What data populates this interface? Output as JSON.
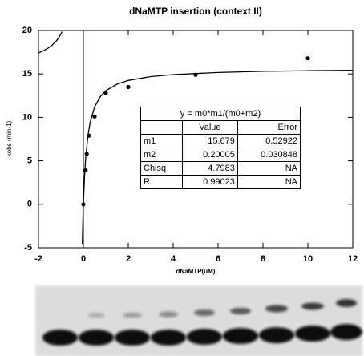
{
  "chart_data": {
    "type": "scatter",
    "title": "dNaMTP  insertion (context II)",
    "x_label": "dNaMTP(uM)",
    "y_label": "kobs (min-1)",
    "x": [
      0,
      0.1,
      0.15,
      0.25,
      0.5,
      1,
      2,
      5,
      10
    ],
    "values": [
      0,
      3.9,
      5.8,
      7.9,
      10.1,
      12.8,
      13.5,
      14.9,
      16.8
    ],
    "color": "#000000",
    "fit": {
      "x": [
        -2,
        -1.8,
        -1.6,
        -1.4,
        -1.2,
        -1.1,
        -1,
        -0.95,
        -0.5,
        -0.045,
        -0.02,
        0,
        0.05,
        0.1,
        0.2,
        0.3,
        0.5,
        0.75,
        1,
        1.5,
        2,
        3,
        4,
        6,
        8,
        10,
        12
      ],
      "values": [
        17.42,
        17.64,
        17.92,
        18.29,
        18.81,
        19.16,
        19.6,
        19.86,
        null,
        -4.55,
        -1.74,
        0,
        3.14,
        5.23,
        7.84,
        9.41,
        11.2,
        12.38,
        13.07,
        13.83,
        14.25,
        14.7,
        14.93,
        15.17,
        15.3,
        15.37,
        15.42
      ]
    },
    "xlim": [
      -2,
      12
    ],
    "xticks": [
      -2,
      0,
      2,
      4,
      6,
      8,
      10,
      12
    ],
    "ylim": [
      -5,
      20
    ],
    "yticks": [
      -5,
      0,
      5,
      10,
      15,
      20
    ]
  },
  "fit_table": {
    "title": "y = m0*m1/(m0+m2)",
    "columns": [
      "Value",
      "Error"
    ],
    "rows": [
      [
        "m1",
        "15.679",
        "0.52922"
      ],
      [
        "m2",
        "0.20005",
        "0.030848"
      ],
      [
        "Chisq",
        "4.7983",
        "NA"
      ],
      [
        "R",
        "0.99023",
        "NA"
      ]
    ]
  }
}
